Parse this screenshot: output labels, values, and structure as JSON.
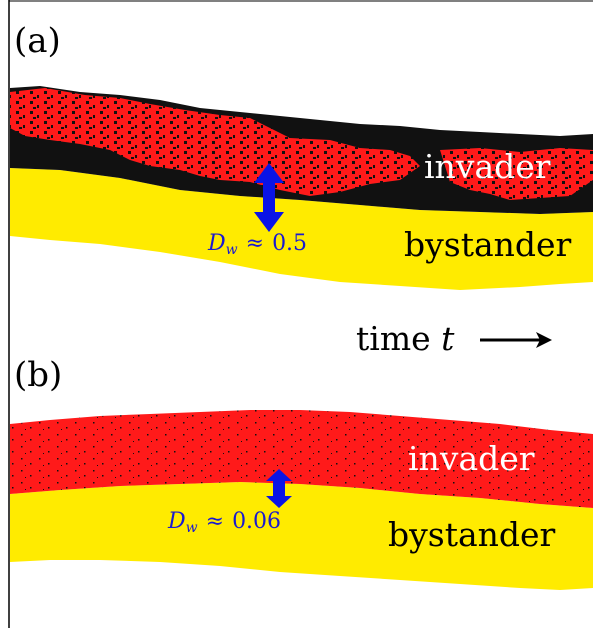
{
  "panels": [
    {
      "label": "(a)",
      "invader_label": "invader",
      "bystander_label": "bystander",
      "dw_symbol": "D",
      "dw_subscript": "w",
      "dw_approx": "≈",
      "dw_value": "0.5",
      "time_label": "time",
      "time_symbol": "t"
    },
    {
      "label": "(b)",
      "invader_label": "invader",
      "bystander_label": "bystander",
      "dw_symbol": "D",
      "dw_subscript": "w",
      "dw_approx": "≈",
      "dw_value": "0.06"
    }
  ],
  "colors": {
    "invader": "#ff1a1a",
    "mixed_black": "#111111",
    "bystander": "#ffeb00",
    "arrow": "#0a14e6",
    "dw_text": "#1a1ad0"
  }
}
